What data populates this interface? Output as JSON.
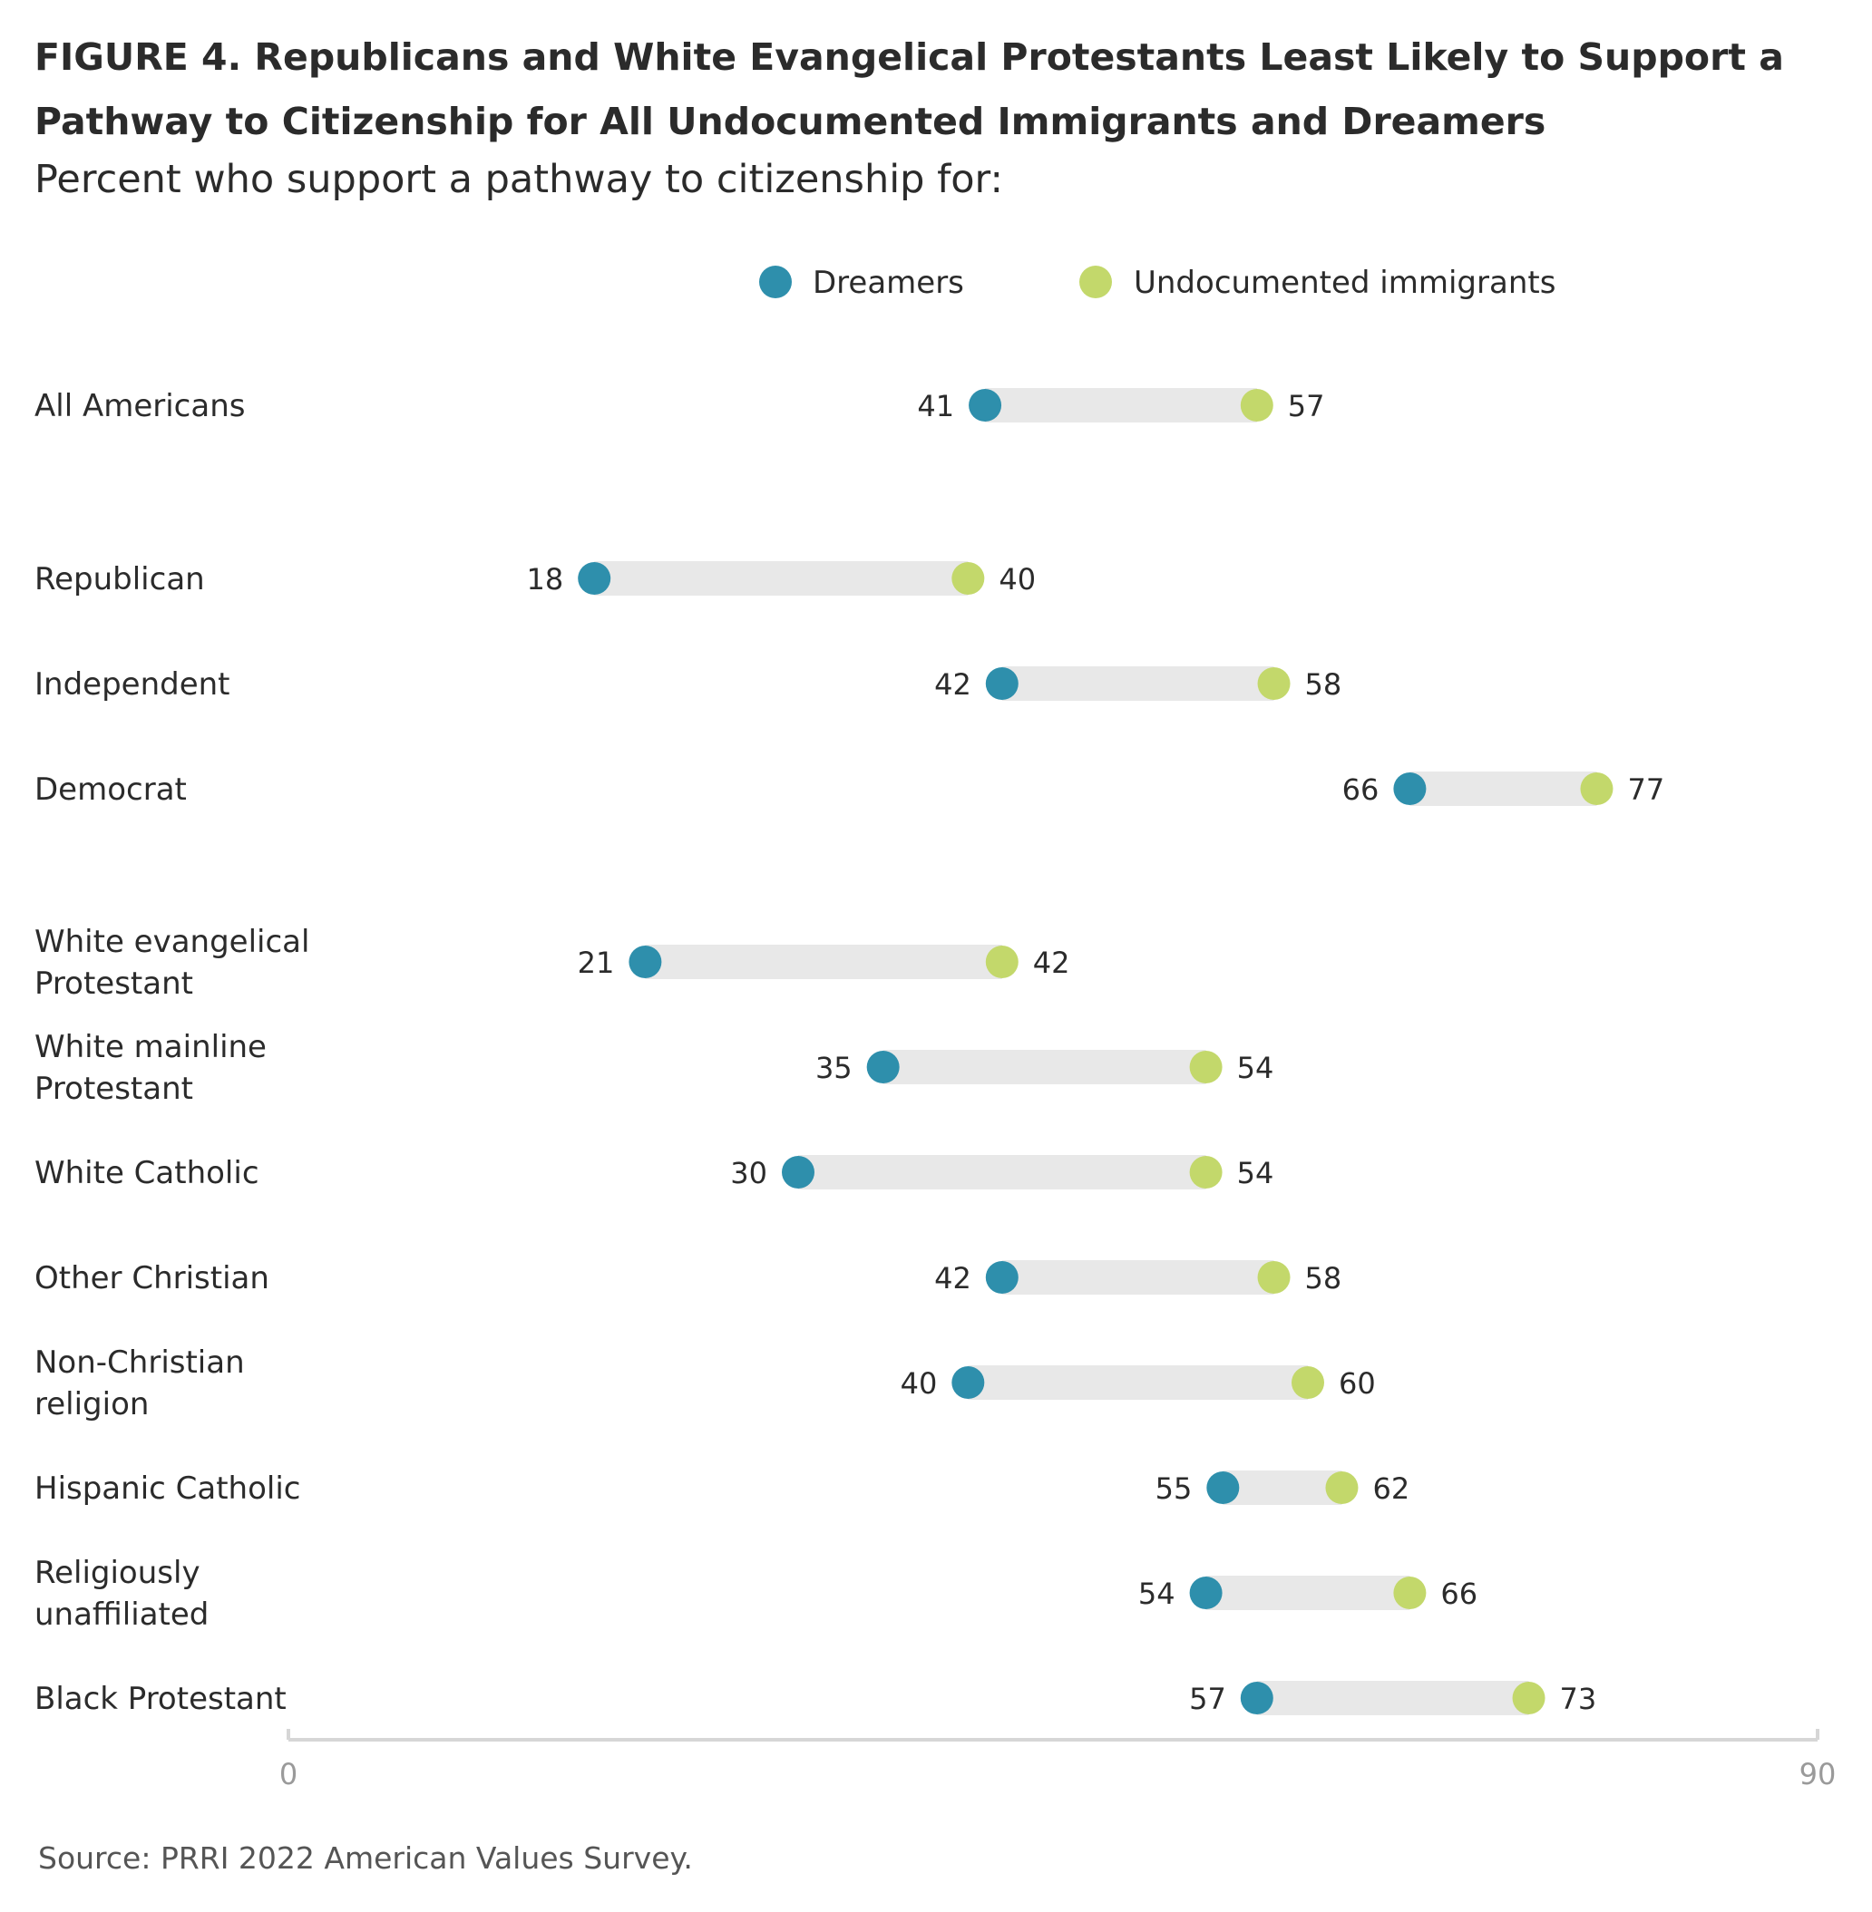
{
  "title": "FIGURE 4.  Republicans and White Evangelical Protestants Least Likely to Support a Pathway to Citizenship for All Undocumented Immigrants and Dreamers",
  "subtitle": "Percent who support a pathway to citizenship for:",
  "source": "Source: PRRI 2022 American Values Survey.",
  "colors": {
    "dreamers": "#2e8fac",
    "undocumented": "#c3d86b",
    "connector": "#e8e8e8",
    "axis": "#d6d6d6"
  },
  "chart_data": {
    "type": "dumbbell",
    "xlim": [
      0,
      90
    ],
    "x_ticks": [
      "0",
      "90"
    ],
    "legend": {
      "position": "top-right",
      "items": [
        "Dreamers",
        "Undocumented immigrants"
      ]
    },
    "series": [
      {
        "name": "Dreamers",
        "values": [
          41,
          18,
          42,
          66,
          21,
          35,
          30,
          42,
          40,
          55,
          54,
          57
        ]
      },
      {
        "name": "Undocumented immigrants",
        "values": [
          57,
          40,
          58,
          77,
          42,
          54,
          54,
          58,
          60,
          62,
          66,
          73
        ]
      }
    ],
    "categories": [
      [
        "All Americans"
      ],
      [
        "Republican"
      ],
      [
        "Independent"
      ],
      [
        "Democrat"
      ],
      [
        "White evangelical",
        "Protestant"
      ],
      [
        "White mainline",
        "Protestant"
      ],
      [
        "White Catholic"
      ],
      [
        "Other Christian"
      ],
      [
        "Non-Christian",
        "religion"
      ],
      [
        "Hispanic Catholic"
      ],
      [
        "Religiously",
        "unaffiliated"
      ],
      [
        "Black Protestant"
      ]
    ]
  }
}
